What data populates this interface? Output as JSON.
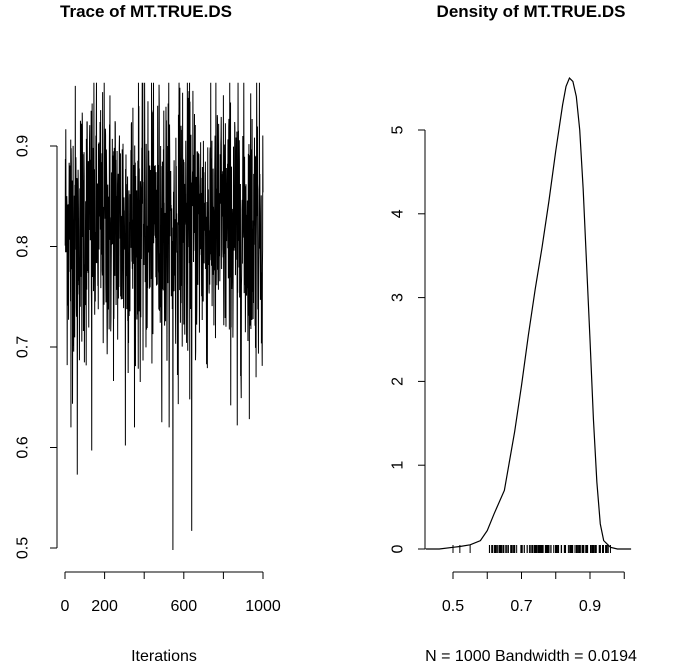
{
  "chart_data": [
    {
      "type": "line",
      "title": "Trace of MT.TRUE.DS",
      "xlabel": "Iterations",
      "ylabel": "",
      "x_ticks": [
        0,
        200,
        600,
        1000
      ],
      "y_ticks": [
        "0.5",
        "0.6",
        "0.7",
        "0.8",
        "0.9"
      ],
      "xlim": [
        0,
        1000
      ],
      "ylim": [
        0.495,
        0.965
      ],
      "series": [
        {
          "x_start": 1,
          "x_step": 1,
          "n": 1000,
          "mean": 0.822,
          "sd": 0.068,
          "min": 0.498,
          "max": 0.963,
          "description_points": [
            [
              30,
              0.62
            ],
            [
              62,
              0.573
            ],
            [
              135,
              0.597
            ],
            [
              305,
              0.602
            ],
            [
              545,
              0.498
            ],
            [
              580,
              0.958
            ],
            [
              640,
              0.517
            ],
            [
              870,
              0.622
            ],
            [
              968,
              0.963
            ]
          ]
        }
      ]
    },
    {
      "type": "line",
      "title": "Density of MT.TRUE.DS",
      "xlabel": "N = 1000   Bandwidth = 0.0194",
      "ylabel": "",
      "x_ticks": [
        "0.5",
        "0.7",
        "0.9"
      ],
      "y_ticks": [
        "0",
        "1",
        "2",
        "3",
        "4",
        "5"
      ],
      "xlim": [
        0.42,
        1.02
      ],
      "ylim": [
        -0.22,
        5.85
      ],
      "series": [
        {
          "name": "density",
          "x": [
            0.42,
            0.46,
            0.5,
            0.52,
            0.55,
            0.58,
            0.6,
            0.62,
            0.65,
            0.68,
            0.7,
            0.72,
            0.74,
            0.76,
            0.78,
            0.8,
            0.82,
            0.83,
            0.84,
            0.85,
            0.86,
            0.87,
            0.88,
            0.9,
            0.91,
            0.92,
            0.93,
            0.94,
            0.96,
            0.98,
            1.02
          ],
          "y": [
            0.0,
            0.0,
            0.02,
            0.03,
            0.05,
            0.1,
            0.22,
            0.42,
            0.7,
            1.4,
            1.95,
            2.55,
            3.1,
            3.6,
            4.15,
            4.75,
            5.3,
            5.52,
            5.62,
            5.58,
            5.4,
            5.0,
            4.3,
            2.5,
            1.55,
            0.8,
            0.3,
            0.1,
            0.02,
            0.0,
            0.0
          ]
        }
      ],
      "rug": {
        "from": 0.5,
        "to": 0.96,
        "n": 1000
      }
    }
  ]
}
